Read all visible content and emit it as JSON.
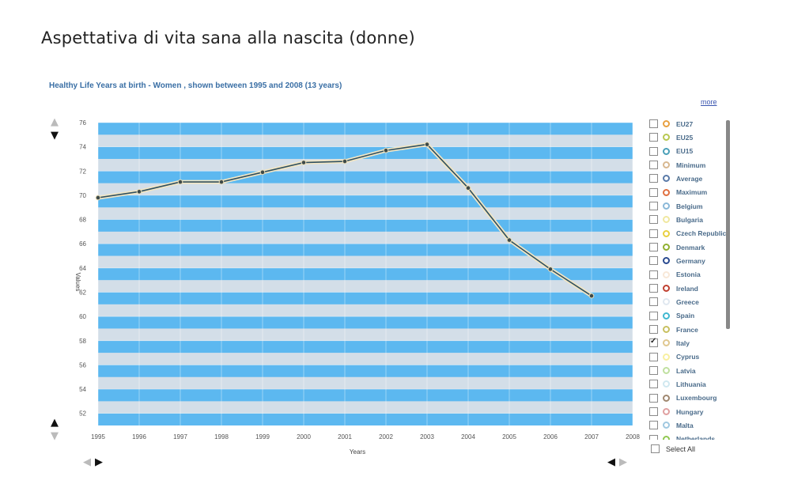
{
  "page": {
    "title": "Aspettativa di vita sana alla nascita (donne)"
  },
  "chart_header": {
    "title": "Healthy Life Years at birth - Women , shown between 1995 and 2008 (13 years)",
    "more_link": "more"
  },
  "chart_data": {
    "type": "line",
    "title": "Healthy Life Years at birth - Women , shown between 1995 and 2008 (13 years)",
    "xlabel": "Years",
    "ylabel": "Values",
    "x": [
      1995,
      1996,
      1997,
      1998,
      1999,
      2000,
      2001,
      2002,
      2003,
      2004,
      2005,
      2006,
      2007,
      2008
    ],
    "x_tick_labels": [
      "1995",
      "1996",
      "1997",
      "1998",
      "1999",
      "2000",
      "2001",
      "2002",
      "2003",
      "2004",
      "2005",
      "2006",
      "2007",
      "2008"
    ],
    "y_ticks": [
      52,
      54,
      56,
      58,
      60,
      62,
      64,
      66,
      68,
      70,
      72,
      74,
      76
    ],
    "ylim": [
      51,
      76
    ],
    "grid": true,
    "background_bands": [
      "#5cb8f0",
      "#d3dee8"
    ],
    "series": [
      {
        "name": "Italy",
        "color": "#2f5060",
        "x": [
          1995,
          1996,
          1997,
          1998,
          1999,
          2000,
          2001,
          2002,
          2003,
          2004,
          2005,
          2006,
          2007
        ],
        "values": [
          69.8,
          70.3,
          71.1,
          71.1,
          71.9,
          72.7,
          72.8,
          73.7,
          74.2,
          70.6,
          66.3,
          63.9,
          61.7
        ]
      }
    ]
  },
  "legend": {
    "items": [
      {
        "label": "EU27",
        "color": "#e8a040",
        "checked": false
      },
      {
        "label": "EU25",
        "color": "#b8c850",
        "checked": false
      },
      {
        "label": "EU15",
        "color": "#4aa0b8",
        "checked": false
      },
      {
        "label": "Minimum",
        "color": "#d8b890",
        "checked": false
      },
      {
        "label": "Average",
        "color": "#5a7aa8",
        "checked": false
      },
      {
        "label": "Maximum",
        "color": "#e07040",
        "checked": false
      },
      {
        "label": "Belgium",
        "color": "#8ab8d8",
        "checked": false
      },
      {
        "label": "Bulgaria",
        "color": "#f0e8a0",
        "checked": false
      },
      {
        "label": "Czech Republic",
        "color": "#e8d040",
        "checked": false
      },
      {
        "label": "Denmark",
        "color": "#90b030",
        "checked": false
      },
      {
        "label": "Germany",
        "color": "#2a4a90",
        "checked": false
      },
      {
        "label": "Estonia",
        "color": "#f8e8d8",
        "checked": false
      },
      {
        "label": "Ireland",
        "color": "#c04030",
        "checked": false
      },
      {
        "label": "Greece",
        "color": "#e0e8f0",
        "checked": false
      },
      {
        "label": "Spain",
        "color": "#40b8d0",
        "checked": false
      },
      {
        "label": "France",
        "color": "#c8c060",
        "checked": false
      },
      {
        "label": "Italy",
        "color": "#e0c890",
        "checked": true
      },
      {
        "label": "Cyprus",
        "color": "#f8f0a0",
        "checked": false
      },
      {
        "label": "Latvia",
        "color": "#c0e0a0",
        "checked": false
      },
      {
        "label": "Lithuania",
        "color": "#d0e8f0",
        "checked": false
      },
      {
        "label": "Luxembourg",
        "color": "#a08870",
        "checked": false
      },
      {
        "label": "Hungary",
        "color": "#e0a0a0",
        "checked": false
      },
      {
        "label": "Malta",
        "color": "#a0c8e0",
        "checked": false
      },
      {
        "label": "Netherlands",
        "color": "#90c850",
        "checked": false
      }
    ],
    "select_all": "Select All"
  }
}
